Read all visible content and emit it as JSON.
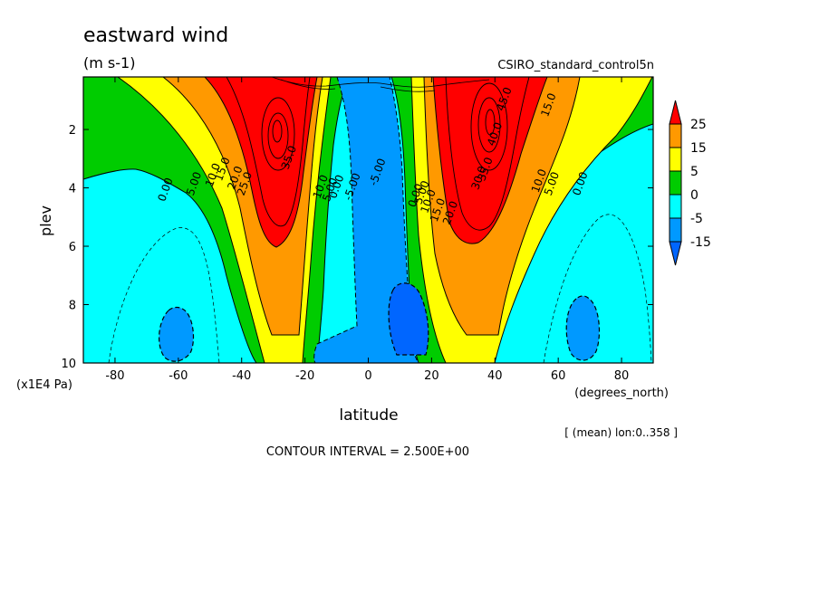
{
  "chart_data": {
    "type": "heatmap",
    "title": "eastward wind",
    "units": "(m s-1)",
    "dataset": "CSIRO_standard_control5n",
    "xlabel": "latitude",
    "x_units": "(degrees_north)",
    "ylabel": "plev",
    "y_units": "(x1E4 Pa)",
    "xlim": [
      -90,
      90
    ],
    "ylim": [
      10,
      0.2
    ],
    "x_ticks": [
      -80,
      -60,
      -40,
      -20,
      0,
      20,
      40,
      60,
      80
    ],
    "y_ticks": [
      2,
      4,
      6,
      8,
      10
    ],
    "averaging_note": "[ (mean) lon:0..358 ]",
    "contour_interval_note": "CONTOUR INTERVAL = 2.500E+00",
    "colorbar": {
      "labels": [
        25,
        15,
        5,
        0,
        -5,
        -15
      ],
      "colors": [
        "#ff0000",
        "#ff9900",
        "#ffff00",
        "#00cc00",
        "#00ffff",
        "#0099ff",
        "#0066ff"
      ]
    },
    "jets": [
      {
        "lat": -29,
        "plev": 2.0,
        "max_speed": 35
      },
      {
        "lat": 39,
        "plev": 1.8,
        "max_speed": 45
      }
    ],
    "contour_labels": [
      {
        "text": "0.00",
        "lat": -63,
        "plev": 4.1
      },
      {
        "text": "5.00",
        "lat": -54,
        "plev": 3.9
      },
      {
        "text": "10.0",
        "lat": -48,
        "plev": 3.6
      },
      {
        "text": "15.0",
        "lat": -45,
        "plev": 3.4
      },
      {
        "text": "20.0",
        "lat": -41,
        "plev": 3.7
      },
      {
        "text": "25.0",
        "lat": -38,
        "plev": 3.9
      },
      {
        "text": "35.0",
        "lat": -24,
        "plev": 3.0
      },
      {
        "text": "10.0",
        "lat": -14,
        "plev": 4.0
      },
      {
        "text": "5.00",
        "lat": -11,
        "plev": 4.1
      },
      {
        "text": "0.00",
        "lat": -9,
        "plev": 4.0
      },
      {
        "text": "-5.00",
        "lat": -4,
        "plev": 4.0
      },
      {
        "text": "-5.00",
        "lat": 4,
        "plev": 3.5
      },
      {
        "text": "0.00",
        "lat": 16,
        "plev": 4.3
      },
      {
        "text": "5.00",
        "lat": 18,
        "plev": 4.2
      },
      {
        "text": "10.0",
        "lat": 20,
        "plev": 4.5
      },
      {
        "text": "15.0",
        "lat": 23,
        "plev": 4.8
      },
      {
        "text": "20.0",
        "lat": 27,
        "plev": 4.9
      },
      {
        "text": "30.0",
        "lat": 36,
        "plev": 3.7
      },
      {
        "text": "35.0",
        "lat": 38,
        "plev": 3.4
      },
      {
        "text": "40.0",
        "lat": 41,
        "plev": 2.2
      },
      {
        "text": "45.0",
        "lat": 44,
        "plev": 1.0
      },
      {
        "text": "15.0",
        "lat": 58,
        "plev": 1.2
      },
      {
        "text": "10.0",
        "lat": 55,
        "plev": 3.8
      },
      {
        "text": "5.00",
        "lat": 59,
        "plev": 3.9
      },
      {
        "text": "0.00",
        "lat": 68,
        "plev": 3.9
      }
    ]
  }
}
